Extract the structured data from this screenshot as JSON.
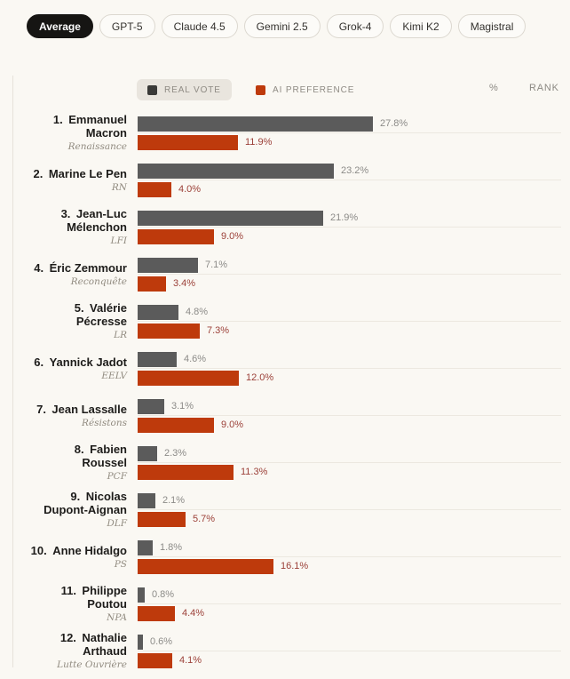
{
  "tabs": [
    {
      "label": "Average",
      "active": true
    },
    {
      "label": "GPT-5",
      "active": false
    },
    {
      "label": "Claude 4.5",
      "active": false
    },
    {
      "label": "Gemini 2.5",
      "active": false
    },
    {
      "label": "Grok-4",
      "active": false
    },
    {
      "label": "Kimi K2",
      "active": false
    },
    {
      "label": "Magistral",
      "active": false
    }
  ],
  "legend": {
    "real_vote_label": "REAL VOTE",
    "ai_preference_label": "AI PREFERENCE"
  },
  "view_toggle": {
    "percent_label": "%",
    "rank_label": "RANK"
  },
  "colors": {
    "real_vote_bar": "#5B5B5B",
    "ai_preference_bar": "#BE3A0C",
    "ai_value_text": "#9C4139",
    "real_value_text": "#8C8B88",
    "background": "#FAF8F3",
    "active_tab": "#161513"
  },
  "chart_data": {
    "type": "bar",
    "orientation": "horizontal",
    "unit": "%",
    "xlim": [
      0,
      28
    ],
    "series_names": [
      "REAL VOTE",
      "AI PREFERENCE"
    ],
    "candidates": [
      {
        "rank": 1,
        "name": "Emmanuel Macron",
        "name_lines": [
          "Emmanuel",
          "Macron"
        ],
        "party": "Renaissance",
        "real_vote": 27.8,
        "ai_preference": 11.9
      },
      {
        "rank": 2,
        "name": "Marine Le Pen",
        "name_lines": [
          "Marine Le Pen"
        ],
        "party": "RN",
        "real_vote": 23.2,
        "ai_preference": 4.0
      },
      {
        "rank": 3,
        "name": "Jean-Luc Mélenchon",
        "name_lines": [
          "Jean-Luc",
          "Mélenchon"
        ],
        "party": "LFI",
        "real_vote": 21.9,
        "ai_preference": 9.0
      },
      {
        "rank": 4,
        "name": "Éric Zemmour",
        "name_lines": [
          "Éric Zemmour"
        ],
        "party": "Reconquête",
        "real_vote": 7.1,
        "ai_preference": 3.4
      },
      {
        "rank": 5,
        "name": "Valérie Pécresse",
        "name_lines": [
          "Valérie",
          "Pécresse"
        ],
        "party": "LR",
        "real_vote": 4.8,
        "ai_preference": 7.3
      },
      {
        "rank": 6,
        "name": "Yannick Jadot",
        "name_lines": [
          "Yannick Jadot"
        ],
        "party": "EELV",
        "real_vote": 4.6,
        "ai_preference": 12.0
      },
      {
        "rank": 7,
        "name": "Jean Lassalle",
        "name_lines": [
          "Jean Lassalle"
        ],
        "party": "Résistons",
        "real_vote": 3.1,
        "ai_preference": 9.0
      },
      {
        "rank": 8,
        "name": "Fabien Roussel",
        "name_lines": [
          "Fabien",
          "Roussel"
        ],
        "party": "PCF",
        "real_vote": 2.3,
        "ai_preference": 11.3
      },
      {
        "rank": 9,
        "name": "Nicolas Dupont-Aignan",
        "name_lines": [
          "Nicolas",
          "Dupont-Aignan"
        ],
        "party": "DLF",
        "real_vote": 2.1,
        "ai_preference": 5.7
      },
      {
        "rank": 10,
        "name": "Anne Hidalgo",
        "name_lines": [
          "Anne Hidalgo"
        ],
        "party": "PS",
        "real_vote": 1.8,
        "ai_preference": 16.1
      },
      {
        "rank": 11,
        "name": "Philippe Poutou",
        "name_lines": [
          "Philippe",
          "Poutou"
        ],
        "party": "NPA",
        "real_vote": 0.8,
        "ai_preference": 4.4
      },
      {
        "rank": 12,
        "name": "Nathalie Arthaud",
        "name_lines": [
          "Nathalie",
          "Arthaud"
        ],
        "party": "Lutte Ouvrière",
        "real_vote": 0.6,
        "ai_preference": 4.1
      }
    ]
  }
}
